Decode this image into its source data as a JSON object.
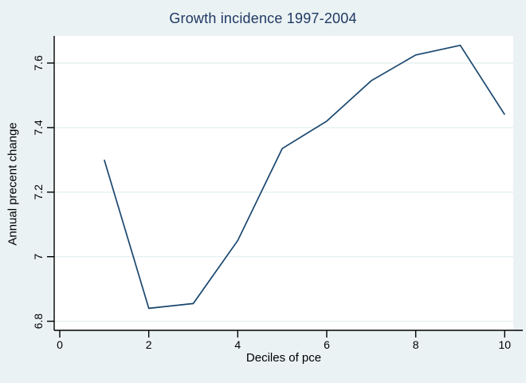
{
  "chart": {
    "title": "Growth incidence 1997-2004",
    "xlabel": "Deciles of pce",
    "ylabel": "Annual precent change"
  },
  "chart_data": {
    "type": "line",
    "title": "Growth incidence 1997-2004",
    "xlabel": "Deciles of pce",
    "ylabel": "Annual precent change",
    "x": [
      1,
      2,
      3,
      4,
      5,
      6,
      7,
      8,
      9,
      10
    ],
    "y": [
      7.3,
      6.84,
      6.855,
      7.05,
      7.335,
      7.42,
      7.545,
      7.625,
      7.655,
      7.44
    ],
    "x_ticks": [
      0,
      2,
      4,
      6,
      8,
      10
    ],
    "y_ticks": [
      6.8,
      7,
      7.2,
      7.4,
      7.6
    ],
    "xlim": [
      0,
      10.4
    ],
    "ylim": [
      6.77,
      7.685
    ],
    "grid": "horizontal-only",
    "legend": "none",
    "colors": {
      "background": "#eaf2f3",
      "plot_background": "#ffffff",
      "line": "#1a476f",
      "gridline": "#e6f0f1",
      "axis": "#000000",
      "title": "#203864"
    }
  }
}
